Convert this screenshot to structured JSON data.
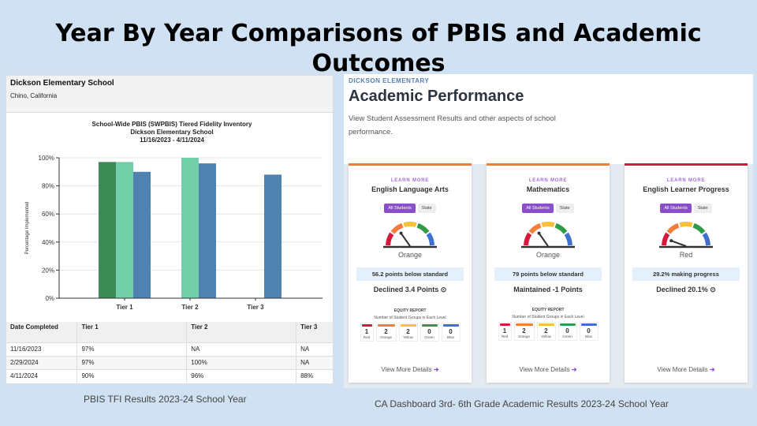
{
  "slide_title": "Year By Year Comparisons of PBIS and Academic Outcomes",
  "left_panel": {
    "school": "Dickson Elementary School",
    "location": "Chino, California",
    "caption": "PBIS TFI Results 2023-24 School Year"
  },
  "chart_data": {
    "type": "bar",
    "title": [
      "School-Wide PBIS (SWPBIS) Tiered Fidelity Inventory",
      "Dickson Elementary School",
      "11/16/2023 - 4/11/2024"
    ],
    "xlabel": "",
    "ylabel": "Percentage Implemented",
    "ylim": [
      0,
      100
    ],
    "yticks": [
      "0%",
      "20%",
      "40%",
      "60%",
      "80%",
      "100%"
    ],
    "categories": [
      "Tier 1",
      "Tier 2",
      "Tier 3"
    ],
    "grid": true,
    "series": [
      {
        "name": "11/16/2023",
        "color": "#3c8a55",
        "values": [
          97,
          null,
          null
        ]
      },
      {
        "name": "2/29/2024",
        "color": "#72cda9",
        "values": [
          97,
          100,
          null
        ]
      },
      {
        "name": "4/11/2024",
        "color": "#4f82b1",
        "values": [
          90,
          96,
          88
        ]
      }
    ]
  },
  "table": {
    "headers": [
      "Date Completed",
      "Tier 1",
      "Tier 2",
      "Tier 3"
    ],
    "rows": [
      [
        "11/16/2023",
        "97%",
        "NA",
        "NA"
      ],
      [
        "2/29/2024",
        "97%",
        "100%",
        "NA"
      ],
      [
        "4/11/2024",
        "90%",
        "96%",
        "88%"
      ]
    ]
  },
  "right_panel": {
    "kicker": "DICKSON ELEMENTARY",
    "heading": "Academic Performance",
    "description": "View Student Assessment Results and other aspects of school performance.",
    "caption": "CA Dashboard 3rd- 6th Grade Academic Results 2023-24 School Year",
    "cards": [
      {
        "learn": "LEARN MORE",
        "name": "English Language Arts",
        "toggle": [
          "All Students",
          "State"
        ],
        "level": "Orange",
        "level_color": "#f57c3a",
        "stat": "56.2 points below standard",
        "change": "Declined 3.4 Points ⊙",
        "equity": true,
        "details": "View More Details"
      },
      {
        "learn": "LEARN MORE",
        "name": "Mathematics",
        "toggle": [
          "All Students",
          "State"
        ],
        "level": "Orange",
        "level_color": "#f57c3a",
        "stat": "79 points below standard",
        "change": "Maintained -1 Points",
        "equity": true,
        "details": "View More Details"
      },
      {
        "learn": "LEARN MORE",
        "name": "English Learner Progress",
        "toggle": [
          "All Students",
          "State"
        ],
        "level": "Red",
        "level_color": "#d6193a",
        "stat": "29.2% making progress",
        "change": "Declined 20.1% ⊙",
        "equity": false,
        "details": "View More Details"
      }
    ],
    "equity": {
      "title": "EQUITY REPORT",
      "subtitle": "Number of Student Groups in Each Level",
      "levels": [
        {
          "label": "Red",
          "count": "1",
          "color": "#d6193a"
        },
        {
          "label": "Orange",
          "count": "2",
          "color": "#f57c3a"
        },
        {
          "label": "Yellow",
          "count": "2",
          "color": "#f9bf3b"
        },
        {
          "label": "Green",
          "count": "0",
          "color": "#2f9a47"
        },
        {
          "label": "Blue",
          "count": "0",
          "color": "#3f6fd0"
        }
      ]
    }
  }
}
